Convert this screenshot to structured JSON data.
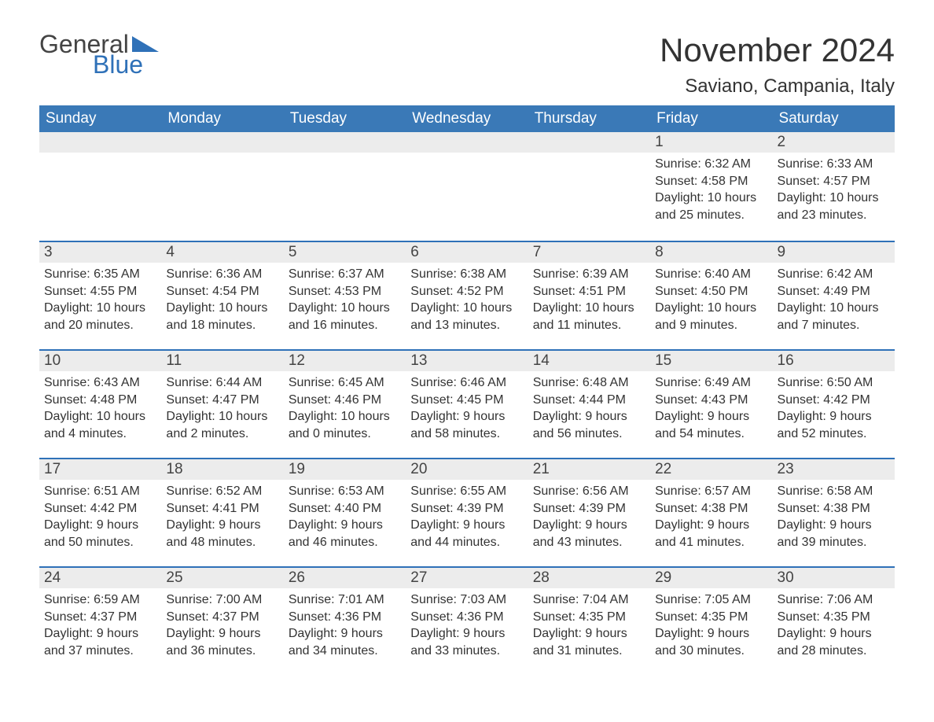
{
  "logo": {
    "word_general": "General",
    "word_blue": "Blue"
  },
  "title": "November 2024",
  "location": "Saviano, Campania, Italy",
  "colors": {
    "header_bg": "#3a79b7",
    "header_text": "#ffffff",
    "accent_line": "#2f71b8",
    "daynum_bg": "#ececec",
    "body_text": "#333333",
    "page_bg": "#ffffff"
  },
  "day_headers": [
    "Sunday",
    "Monday",
    "Tuesday",
    "Wednesday",
    "Thursday",
    "Friday",
    "Saturday"
  ],
  "weeks": [
    [
      null,
      null,
      null,
      null,
      null,
      {
        "n": "1",
        "sunrise": "Sunrise: 6:32 AM",
        "sunset": "Sunset: 4:58 PM",
        "d1": "Daylight: 10 hours",
        "d2": "and 25 minutes."
      },
      {
        "n": "2",
        "sunrise": "Sunrise: 6:33 AM",
        "sunset": "Sunset: 4:57 PM",
        "d1": "Daylight: 10 hours",
        "d2": "and 23 minutes."
      }
    ],
    [
      {
        "n": "3",
        "sunrise": "Sunrise: 6:35 AM",
        "sunset": "Sunset: 4:55 PM",
        "d1": "Daylight: 10 hours",
        "d2": "and 20 minutes."
      },
      {
        "n": "4",
        "sunrise": "Sunrise: 6:36 AM",
        "sunset": "Sunset: 4:54 PM",
        "d1": "Daylight: 10 hours",
        "d2": "and 18 minutes."
      },
      {
        "n": "5",
        "sunrise": "Sunrise: 6:37 AM",
        "sunset": "Sunset: 4:53 PM",
        "d1": "Daylight: 10 hours",
        "d2": "and 16 minutes."
      },
      {
        "n": "6",
        "sunrise": "Sunrise: 6:38 AM",
        "sunset": "Sunset: 4:52 PM",
        "d1": "Daylight: 10 hours",
        "d2": "and 13 minutes."
      },
      {
        "n": "7",
        "sunrise": "Sunrise: 6:39 AM",
        "sunset": "Sunset: 4:51 PM",
        "d1": "Daylight: 10 hours",
        "d2": "and 11 minutes."
      },
      {
        "n": "8",
        "sunrise": "Sunrise: 6:40 AM",
        "sunset": "Sunset: 4:50 PM",
        "d1": "Daylight: 10 hours",
        "d2": "and 9 minutes."
      },
      {
        "n": "9",
        "sunrise": "Sunrise: 6:42 AM",
        "sunset": "Sunset: 4:49 PM",
        "d1": "Daylight: 10 hours",
        "d2": "and 7 minutes."
      }
    ],
    [
      {
        "n": "10",
        "sunrise": "Sunrise: 6:43 AM",
        "sunset": "Sunset: 4:48 PM",
        "d1": "Daylight: 10 hours",
        "d2": "and 4 minutes."
      },
      {
        "n": "11",
        "sunrise": "Sunrise: 6:44 AM",
        "sunset": "Sunset: 4:47 PM",
        "d1": "Daylight: 10 hours",
        "d2": "and 2 minutes."
      },
      {
        "n": "12",
        "sunrise": "Sunrise: 6:45 AM",
        "sunset": "Sunset: 4:46 PM",
        "d1": "Daylight: 10 hours",
        "d2": "and 0 minutes."
      },
      {
        "n": "13",
        "sunrise": "Sunrise: 6:46 AM",
        "sunset": "Sunset: 4:45 PM",
        "d1": "Daylight: 9 hours",
        "d2": "and 58 minutes."
      },
      {
        "n": "14",
        "sunrise": "Sunrise: 6:48 AM",
        "sunset": "Sunset: 4:44 PM",
        "d1": "Daylight: 9 hours",
        "d2": "and 56 minutes."
      },
      {
        "n": "15",
        "sunrise": "Sunrise: 6:49 AM",
        "sunset": "Sunset: 4:43 PM",
        "d1": "Daylight: 9 hours",
        "d2": "and 54 minutes."
      },
      {
        "n": "16",
        "sunrise": "Sunrise: 6:50 AM",
        "sunset": "Sunset: 4:42 PM",
        "d1": "Daylight: 9 hours",
        "d2": "and 52 minutes."
      }
    ],
    [
      {
        "n": "17",
        "sunrise": "Sunrise: 6:51 AM",
        "sunset": "Sunset: 4:42 PM",
        "d1": "Daylight: 9 hours",
        "d2": "and 50 minutes."
      },
      {
        "n": "18",
        "sunrise": "Sunrise: 6:52 AM",
        "sunset": "Sunset: 4:41 PM",
        "d1": "Daylight: 9 hours",
        "d2": "and 48 minutes."
      },
      {
        "n": "19",
        "sunrise": "Sunrise: 6:53 AM",
        "sunset": "Sunset: 4:40 PM",
        "d1": "Daylight: 9 hours",
        "d2": "and 46 minutes."
      },
      {
        "n": "20",
        "sunrise": "Sunrise: 6:55 AM",
        "sunset": "Sunset: 4:39 PM",
        "d1": "Daylight: 9 hours",
        "d2": "and 44 minutes."
      },
      {
        "n": "21",
        "sunrise": "Sunrise: 6:56 AM",
        "sunset": "Sunset: 4:39 PM",
        "d1": "Daylight: 9 hours",
        "d2": "and 43 minutes."
      },
      {
        "n": "22",
        "sunrise": "Sunrise: 6:57 AM",
        "sunset": "Sunset: 4:38 PM",
        "d1": "Daylight: 9 hours",
        "d2": "and 41 minutes."
      },
      {
        "n": "23",
        "sunrise": "Sunrise: 6:58 AM",
        "sunset": "Sunset: 4:38 PM",
        "d1": "Daylight: 9 hours",
        "d2": "and 39 minutes."
      }
    ],
    [
      {
        "n": "24",
        "sunrise": "Sunrise: 6:59 AM",
        "sunset": "Sunset: 4:37 PM",
        "d1": "Daylight: 9 hours",
        "d2": "and 37 minutes."
      },
      {
        "n": "25",
        "sunrise": "Sunrise: 7:00 AM",
        "sunset": "Sunset: 4:37 PM",
        "d1": "Daylight: 9 hours",
        "d2": "and 36 minutes."
      },
      {
        "n": "26",
        "sunrise": "Sunrise: 7:01 AM",
        "sunset": "Sunset: 4:36 PM",
        "d1": "Daylight: 9 hours",
        "d2": "and 34 minutes."
      },
      {
        "n": "27",
        "sunrise": "Sunrise: 7:03 AM",
        "sunset": "Sunset: 4:36 PM",
        "d1": "Daylight: 9 hours",
        "d2": "and 33 minutes."
      },
      {
        "n": "28",
        "sunrise": "Sunrise: 7:04 AM",
        "sunset": "Sunset: 4:35 PM",
        "d1": "Daylight: 9 hours",
        "d2": "and 31 minutes."
      },
      {
        "n": "29",
        "sunrise": "Sunrise: 7:05 AM",
        "sunset": "Sunset: 4:35 PM",
        "d1": "Daylight: 9 hours",
        "d2": "and 30 minutes."
      },
      {
        "n": "30",
        "sunrise": "Sunrise: 7:06 AM",
        "sunset": "Sunset: 4:35 PM",
        "d1": "Daylight: 9 hours",
        "d2": "and 28 minutes."
      }
    ]
  ]
}
